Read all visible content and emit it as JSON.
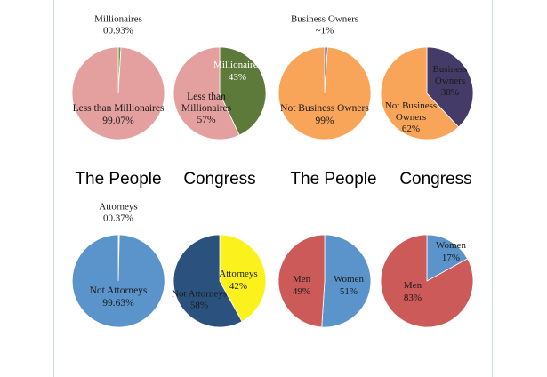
{
  "colors": {
    "pink": "#E3A09F",
    "olive": "#5E7A3A",
    "orange": "#F9A559",
    "purple": "#453B68",
    "blue": "#5B93CB",
    "navy": "#2B517F",
    "yellow": "#FBF21D",
    "red": "#CC5A59",
    "sliver_green": "#6E9A3E",
    "sliver_navy": "#3A3A7A",
    "sliver_yellow": "#F2EE3A",
    "frame": "#cfd8dc"
  },
  "headings": [
    "The People",
    "Congress",
    "The People",
    "Congress"
  ],
  "chart_data": [
    {
      "type": "pie",
      "group": "The People",
      "series": [
        {
          "name": "Millionaires",
          "value": 0.93,
          "color": "sliver_green",
          "label": [
            "Millionaires",
            "00.93%"
          ]
        },
        {
          "name": "Less than Millionaires",
          "value": 99.07,
          "color": "pink",
          "label": [
            "Less than Millionaires",
            "99.07%"
          ]
        }
      ]
    },
    {
      "type": "pie",
      "group": "Congress",
      "series": [
        {
          "name": "Millionaires",
          "value": 43,
          "color": "olive",
          "label": [
            "Millionaires",
            "43%"
          ]
        },
        {
          "name": "Less than Millionaires",
          "value": 57,
          "color": "pink",
          "label": [
            "Less than",
            "Millionaires",
            "57%"
          ]
        }
      ]
    },
    {
      "type": "pie",
      "group": "The People",
      "series": [
        {
          "name": "Business Owners",
          "value": 1,
          "color": "sliver_navy",
          "label": [
            "Business Owners",
            "~1%"
          ]
        },
        {
          "name": "Not Business Owners",
          "value": 99,
          "color": "orange",
          "label": [
            "Not Business Owners",
            "99%"
          ]
        }
      ]
    },
    {
      "type": "pie",
      "group": "Congress",
      "series": [
        {
          "name": "Business Owners",
          "value": 38,
          "color": "purple",
          "label": [
            "Business",
            "Owners",
            "38%"
          ]
        },
        {
          "name": "Not Business Owners",
          "value": 62,
          "color": "orange",
          "label": [
            "Not Business",
            "Owners",
            "62%"
          ]
        }
      ]
    },
    {
      "type": "pie",
      "group": "The People",
      "series": [
        {
          "name": "Attorneys",
          "value": 0.37,
          "color": "sliver_yellow",
          "label": [
            "Attorneys",
            "00.37%"
          ]
        },
        {
          "name": "Not Attorneys",
          "value": 99.63,
          "color": "blue",
          "label": [
            "Not Attorneys",
            "99.63%"
          ]
        }
      ]
    },
    {
      "type": "pie",
      "group": "Congress",
      "series": [
        {
          "name": "Attorneys",
          "value": 42,
          "color": "yellow",
          "label": [
            "Attorneys",
            "42%"
          ]
        },
        {
          "name": "Not Attorneys",
          "value": 58,
          "color": "navy",
          "label": [
            "Not Attorneys",
            "58%"
          ]
        }
      ]
    },
    {
      "type": "pie",
      "group": "The People",
      "series": [
        {
          "name": "Women",
          "value": 51,
          "color": "blue",
          "label": [
            "Women",
            "51%"
          ]
        },
        {
          "name": "Men",
          "value": 49,
          "color": "red",
          "label": [
            "Men",
            "49%"
          ]
        }
      ]
    },
    {
      "type": "pie",
      "group": "Congress",
      "series": [
        {
          "name": "Women",
          "value": 17,
          "color": "blue",
          "label": [
            "Women",
            "17%"
          ]
        },
        {
          "name": "Men",
          "value": 83,
          "color": "red",
          "label": [
            "Men",
            "83%"
          ]
        }
      ]
    }
  ]
}
